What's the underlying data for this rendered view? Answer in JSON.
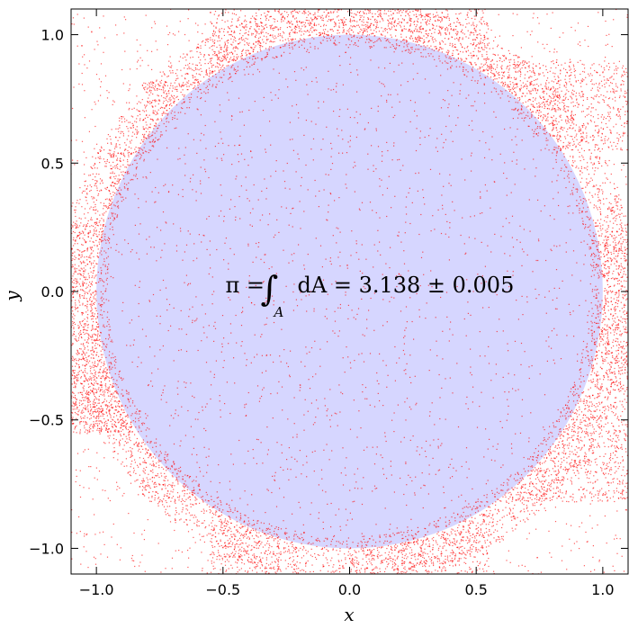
{
  "chart_data": {
    "type": "scatter",
    "title": "",
    "xlabel": "x",
    "ylabel": "y",
    "xlim": [
      -1.1,
      1.1
    ],
    "ylim": [
      -1.1,
      1.1
    ],
    "grid": false,
    "xticks": [
      -1.0,
      -0.5,
      0.0,
      0.5,
      1.0
    ],
    "yticks": [
      -1.0,
      -0.5,
      0.0,
      0.5,
      1.0
    ],
    "xtick_labels": [
      "−1.0",
      "−0.5",
      "0.0",
      "0.5",
      "1.0"
    ],
    "ytick_labels": [
      "−1.0",
      "−0.5",
      "0.0",
      "0.5",
      "1.0"
    ],
    "annotation": {
      "text": "π = ∫ A dA = 3.138 ± 0.005",
      "lhs": "π =",
      "integral": "∫",
      "subscript": "A",
      "rhs": "dA = 3.138 ± 0.005",
      "x": 0.0,
      "y": 0.0
    },
    "estimate": 3.138,
    "uncertainty": 0.005,
    "point_color": "#ff0000",
    "inside_fill_color": "#d6d6ff",
    "inside_rectangles": [
      [
        -0.5,
        0.82,
        0.0,
        0.0
      ],
      [
        0.0,
        0.82,
        -0.82,
        -0.98
      ],
      [
        0.0,
        0.5,
        0.0,
        0.7
      ],
      [
        0.0,
        0.55,
        0.55,
        0.7
      ],
      [
        -0.5,
        0.0,
        0.0,
        -0.55
      ],
      [
        -0.82,
        0.0,
        0.0,
        0.55
      ],
      [
        -0.82,
        -0.5,
        -0.55,
        0.0
      ],
      [
        -0.5,
        0.55,
        -0.55,
        0.0
      ],
      [
        0.0,
        0.82,
        0.0,
        0.55
      ],
      [
        0.0,
        0.82,
        -0.55,
        0.0
      ],
      [
        -0.3,
        0.0,
        -0.97,
        -0.55
      ],
      [
        0.0,
        0.55,
        -0.8,
        -0.55
      ]
    ],
    "boundary_circle": {
      "cx": 0.0,
      "cy": 0.0,
      "r": 1.0
    },
    "sampling_tiles": [
      [
        -1.1,
        -0.82,
        0.27,
        -0.55
      ],
      [
        -0.95,
        -0.82,
        0.55,
        0.27
      ],
      [
        -0.82,
        -0.55,
        0.82,
        0.55
      ],
      [
        -0.55,
        -0.27,
        1.1,
        0.82
      ],
      [
        -0.27,
        0.0,
        1.1,
        0.82
      ],
      [
        0.0,
        0.27,
        1.1,
        0.82
      ],
      [
        0.27,
        0.55,
        1.1,
        0.82
      ],
      [
        0.55,
        1.1,
        0.9,
        0.55
      ],
      [
        0.82,
        1.1,
        0.27,
        -0.27
      ],
      [
        0.82,
        1.1,
        -0.27,
        -0.82
      ],
      [
        0.55,
        0.82,
        -0.55,
        -0.82
      ],
      [
        0.0,
        0.55,
        -0.82,
        -1.1
      ],
      [
        -0.55,
        -0.27,
        -0.55,
        -1.1
      ],
      [
        -0.82,
        -0.55,
        -0.55,
        -0.82
      ],
      [
        -1.1,
        -0.82,
        -0.27,
        -0.55
      ]
    ]
  }
}
